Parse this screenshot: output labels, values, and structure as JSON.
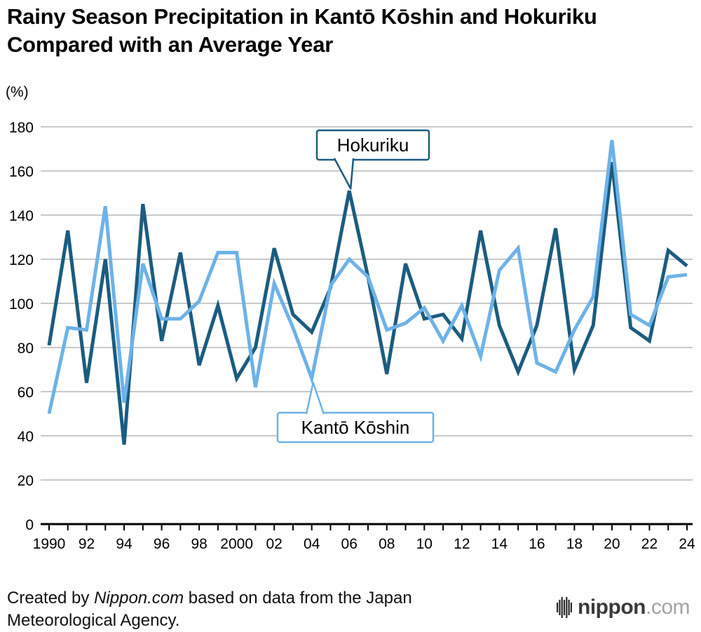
{
  "title": "Rainy Season Precipitation in Kantō Kōshin and Hokuriku Compared with an Average Year",
  "unit_label": "(%)",
  "chart_data": {
    "type": "line",
    "x": [
      1990,
      1991,
      1992,
      1993,
      1994,
      1995,
      1996,
      1997,
      1998,
      1999,
      2000,
      2001,
      2002,
      2003,
      2004,
      2005,
      2006,
      2007,
      2008,
      2009,
      2010,
      2011,
      2012,
      2013,
      2014,
      2015,
      2016,
      2017,
      2018,
      2019,
      2020,
      2021,
      2022,
      2023,
      2024
    ],
    "x_tick_labels": [
      "1990",
      "",
      "92",
      "",
      "94",
      "",
      "96",
      "",
      "98",
      "",
      "2000",
      "",
      "02",
      "",
      "04",
      "",
      "06",
      "",
      "08",
      "",
      "10",
      "",
      "12",
      "",
      "14",
      "",
      "16",
      "",
      "18",
      "",
      "20",
      "",
      "22",
      "",
      "24"
    ],
    "series": [
      {
        "name": "Hokuriku",
        "color": "#1b5c80",
        "values": [
          81,
          133,
          64,
          120,
          36,
          145,
          83,
          123,
          72,
          99,
          66,
          80,
          125,
          95,
          87,
          107,
          151,
          112,
          68,
          118,
          93,
          95,
          84,
          133,
          90,
          69,
          90,
          134,
          70,
          90,
          164,
          89,
          83,
          124,
          117
        ]
      },
      {
        "name": "Kantō Kōshin",
        "color": "#6db2e8",
        "values": [
          50,
          89,
          88,
          144,
          55,
          118,
          93,
          93,
          101,
          123,
          123,
          62,
          109,
          89,
          66,
          108,
          120,
          112,
          88,
          91,
          98,
          83,
          99,
          76,
          115,
          125,
          73,
          69,
          88,
          103,
          174,
          95,
          90,
          112,
          113
        ]
      }
    ],
    "ylim": [
      0,
      180
    ],
    "ytick_step": 20,
    "grid": true,
    "grid_color": "#c9c9c9",
    "legend_position": "annotations-on-plot",
    "annotations": [
      {
        "label": "Hokuriku",
        "series": "Hokuriku",
        "target_year": 2006
      },
      {
        "label": "Kantō Kōshin",
        "series": "Kantō Kōshin",
        "target_year": 2004
      }
    ]
  },
  "footer": {
    "prefix": "Created by ",
    "source_italic": "Nippon.com",
    "suffix": " based on data from the Japan Meteorological Agency."
  },
  "logo": {
    "name": "nippon",
    "tld": ".com"
  }
}
